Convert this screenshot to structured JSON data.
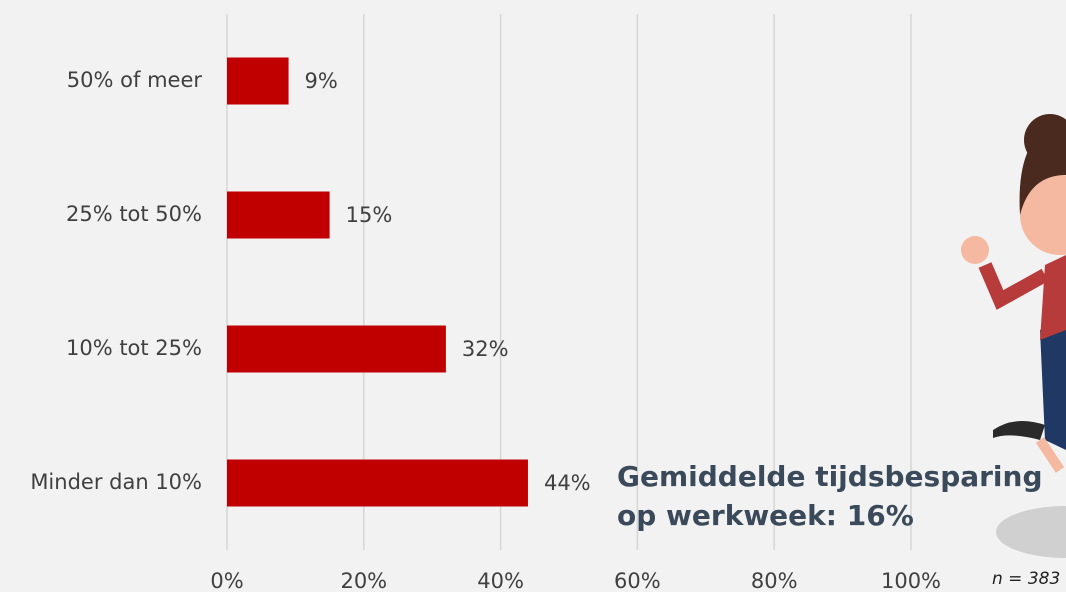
{
  "chart_data": {
    "type": "barh",
    "categories": [
      "50% of meer",
      "25% tot 50%",
      "10% tot 25%",
      "Minder dan 10%"
    ],
    "values": [
      9,
      15,
      32,
      44
    ],
    "value_labels": [
      "9%",
      "15%",
      "32%",
      "44%"
    ],
    "color": "#c00000",
    "xlim": [
      0,
      100
    ],
    "xticks": [
      {
        "value": 0,
        "label": "0%"
      },
      {
        "value": 20,
        "label": "20%"
      },
      {
        "value": 40,
        "label": "40%"
      },
      {
        "value": 60,
        "label": "60%"
      },
      {
        "value": 80,
        "label": "80%"
      },
      {
        "value": 100,
        "label": "100%"
      }
    ],
    "grid": true,
    "annotation": [
      "Gemiddelde tijdsbesparing",
      "op werkweek: 16%"
    ],
    "note": "n = 383"
  }
}
